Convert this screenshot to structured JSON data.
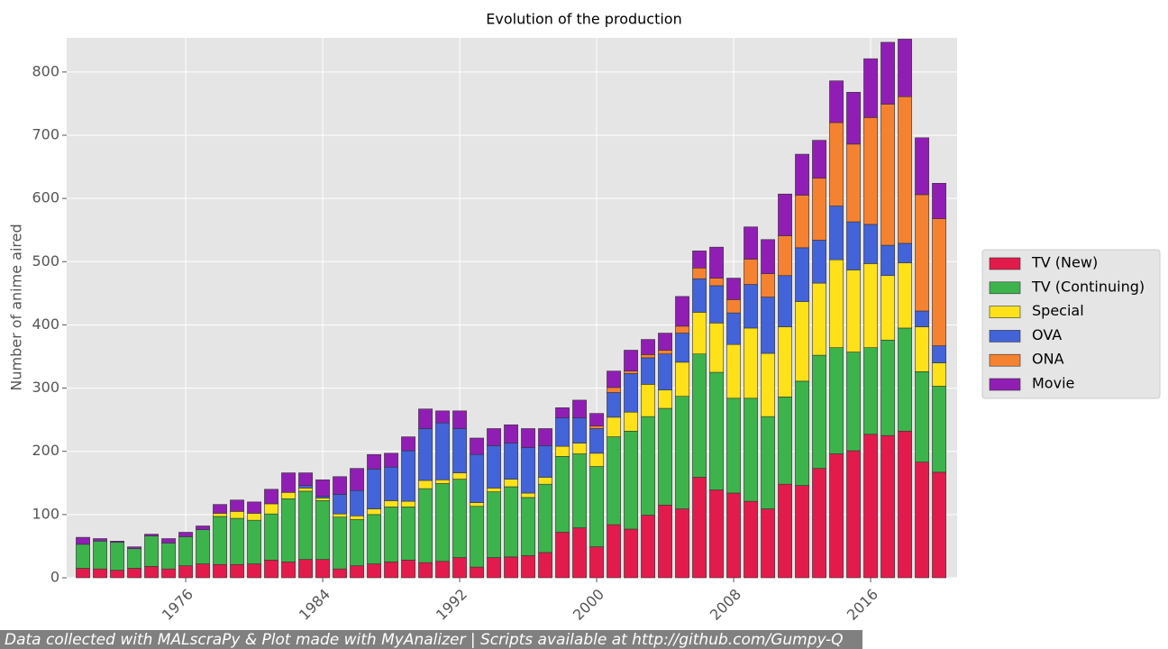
{
  "chart_data": {
    "type": "stacked_bar",
    "title": "Evolution of the production",
    "ylabel": "Number of anime aired",
    "footnote": "Data collected with MALscraPy & Plot made with MyAnalizer | Scripts available at http://github.com/Gumpy-Q",
    "x": [
      1970,
      1971,
      1972,
      1973,
      1974,
      1975,
      1976,
      1977,
      1978,
      1979,
      1980,
      1981,
      1982,
      1983,
      1984,
      1985,
      1986,
      1987,
      1988,
      1989,
      1990,
      1991,
      1992,
      1993,
      1994,
      1995,
      1996,
      1997,
      1998,
      1999,
      2000,
      2001,
      2002,
      2003,
      2004,
      2005,
      2006,
      2007,
      2008,
      2009,
      2010,
      2011,
      2012,
      2013,
      2014,
      2015,
      2016,
      2017,
      2018,
      2019,
      2020
    ],
    "series": [
      {
        "name": "TV (New)",
        "color": "#e31b4c",
        "values": [
          15,
          14,
          12,
          15,
          18,
          14,
          19,
          22,
          21,
          21,
          22,
          28,
          25,
          29,
          29,
          14,
          19,
          22,
          25,
          28,
          24,
          26,
          32,
          17,
          32,
          33,
          35,
          40,
          72,
          79,
          49,
          84,
          77,
          99,
          115,
          109,
          159,
          139,
          134,
          121,
          109,
          148,
          146,
          173,
          196,
          201,
          227,
          225,
          232,
          183,
          167
        ]
      },
      {
        "name": "TV (Continuing)",
        "color": "#3cb44b",
        "values": [
          38,
          44,
          44,
          31,
          48,
          41,
          46,
          54,
          76,
          73,
          69,
          73,
          100,
          108,
          93,
          82,
          73,
          78,
          87,
          84,
          117,
          123,
          124,
          96,
          104,
          111,
          92,
          108,
          120,
          117,
          127,
          139,
          155,
          156,
          153,
          178,
          195,
          186,
          150,
          163,
          146,
          138,
          165,
          179,
          168,
          156,
          137,
          151,
          163,
          143,
          136
        ]
      },
      {
        "name": "Special",
        "color": "#ffe119",
        "values": [
          0,
          0,
          0,
          0,
          0,
          0,
          0,
          0,
          5,
          11,
          11,
          16,
          10,
          5,
          4,
          5,
          6,
          9,
          10,
          9,
          13,
          6,
          10,
          6,
          6,
          12,
          7,
          11,
          16,
          17,
          21,
          31,
          30,
          51,
          29,
          54,
          66,
          78,
          85,
          111,
          100,
          111,
          126,
          114,
          139,
          130,
          133,
          102,
          103,
          71,
          37
        ]
      },
      {
        "name": "OVA",
        "color": "#4363d8",
        "values": [
          0,
          0,
          0,
          0,
          0,
          0,
          0,
          0,
          0,
          0,
          0,
          0,
          0,
          4,
          3,
          31,
          40,
          63,
          53,
          80,
          82,
          90,
          70,
          76,
          67,
          57,
          72,
          50,
          45,
          40,
          39,
          39,
          61,
          42,
          57,
          46,
          53,
          59,
          50,
          69,
          89,
          81,
          85,
          68,
          85,
          76,
          62,
          48,
          31,
          25,
          27
        ]
      },
      {
        "name": "ONA",
        "color": "#f58231",
        "values": [
          0,
          0,
          0,
          0,
          0,
          0,
          0,
          0,
          0,
          0,
          0,
          0,
          0,
          0,
          0,
          0,
          0,
          0,
          0,
          0,
          0,
          0,
          0,
          0,
          0,
          0,
          0,
          0,
          0,
          0,
          4,
          8,
          4,
          5,
          6,
          11,
          17,
          12,
          21,
          40,
          37,
          63,
          83,
          98,
          132,
          123,
          169,
          223,
          232,
          184,
          201
        ]
      },
      {
        "name": "Movie",
        "color": "#911eb4",
        "values": [
          11,
          4,
          2,
          3,
          3,
          7,
          7,
          6,
          14,
          18,
          18,
          23,
          31,
          20,
          26,
          28,
          35,
          23,
          22,
          22,
          31,
          19,
          28,
          26,
          27,
          29,
          30,
          27,
          16,
          28,
          20,
          26,
          33,
          24,
          27,
          47,
          27,
          49,
          34,
          51,
          54,
          66,
          65,
          60,
          66,
          82,
          93,
          98,
          91,
          90,
          56
        ]
      }
    ],
    "xlim": [
      1969.05,
      2021.05
    ],
    "xticks": [
      1976,
      1984,
      1992,
      2000,
      2008,
      2016
    ],
    "ylim": [
      0,
      854
    ],
    "yticks": [
      0,
      100,
      200,
      300,
      400,
      500,
      600,
      700,
      800
    ],
    "grid": true,
    "legend": "right"
  }
}
